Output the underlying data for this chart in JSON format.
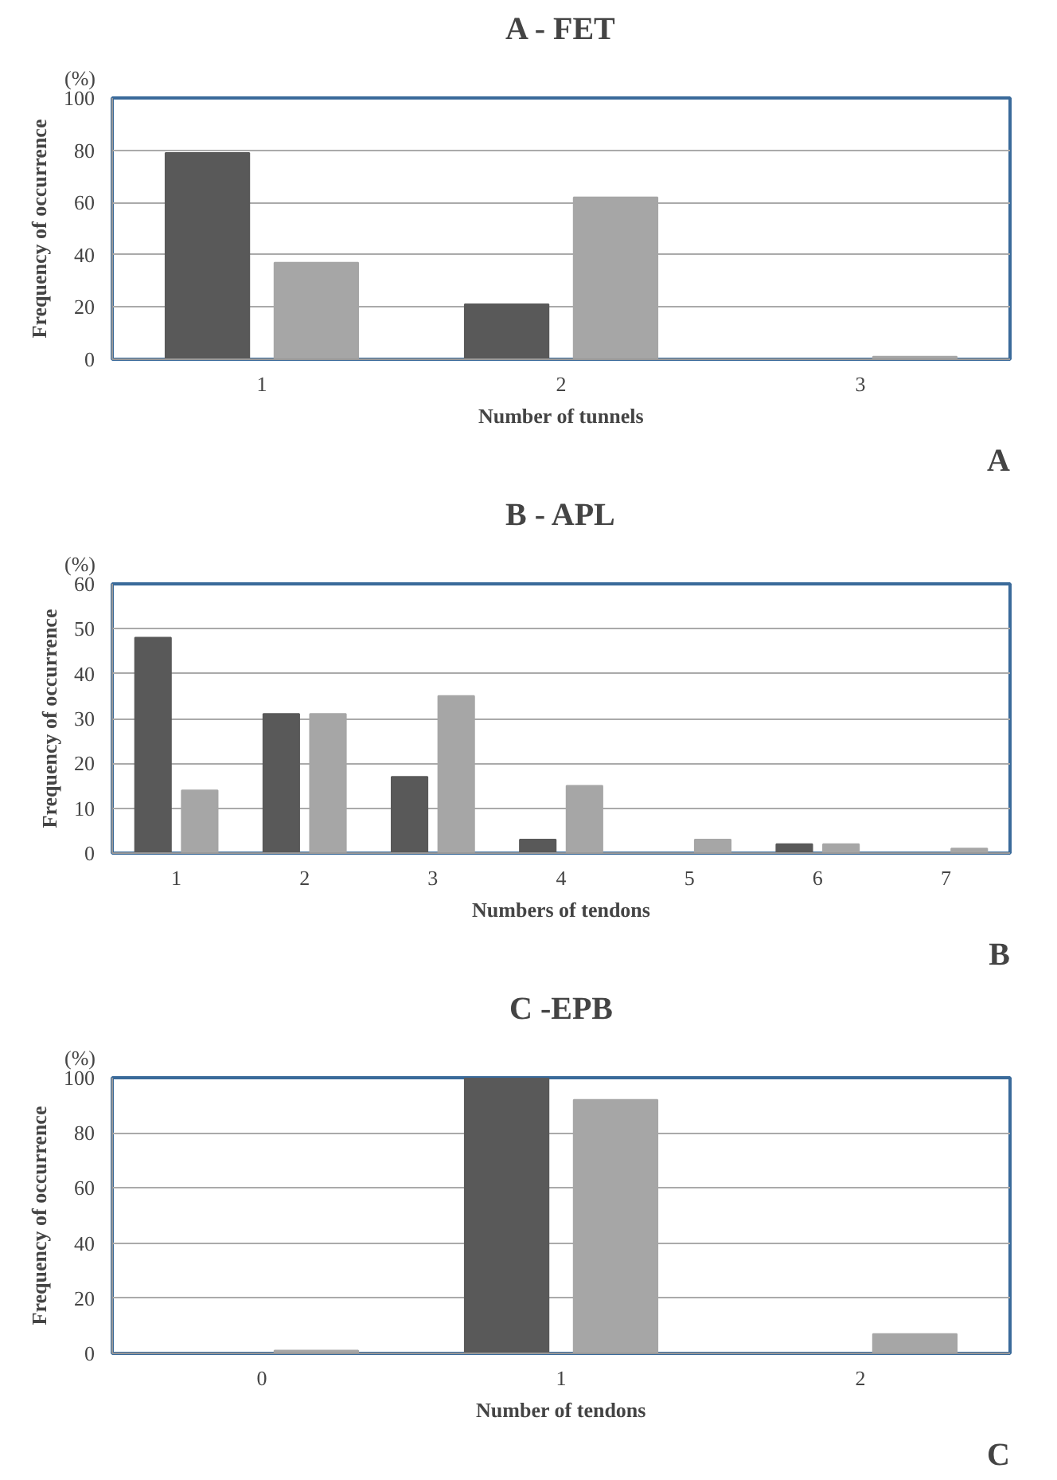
{
  "chart_data": [
    {
      "type": "bar",
      "title": "A - FET",
      "xlabel": "Number of tunnels",
      "ylabel": "Frequency of occurrence",
      "categories": [
        "1",
        "2",
        "3"
      ],
      "series": [
        {
          "color": "#595959",
          "values": [
            79,
            21,
            0
          ]
        },
        {
          "color": "#a6a6a6",
          "values": [
            37,
            62,
            1
          ]
        }
      ],
      "ylim": [
        0,
        100
      ],
      "yticks": [
        0,
        20,
        40,
        60,
        80,
        100
      ],
      "grid": "y",
      "annotations": [
        "(%)",
        "A"
      ]
    },
    {
      "type": "bar",
      "title": "B - APL",
      "xlabel": "Numbers of tendons",
      "ylabel": "Frequency of occurrence",
      "categories": [
        "1",
        "2",
        "3",
        "4",
        "5",
        "6",
        "7"
      ],
      "series": [
        {
          "color": "#595959",
          "values": [
            48,
            31,
            17,
            3,
            0,
            2,
            0
          ]
        },
        {
          "color": "#a6a6a6",
          "values": [
            14,
            31,
            35,
            15,
            3,
            2,
            1
          ]
        }
      ],
      "ylim": [
        0,
        60
      ],
      "yticks": [
        0,
        10,
        20,
        30,
        40,
        50,
        60
      ],
      "grid": "y",
      "annotations": [
        "(%)",
        "B"
      ]
    },
    {
      "type": "bar",
      "title": "C -EPB",
      "xlabel": "Number of tendons",
      "ylabel": "Frequency of occurrence",
      "categories": [
        "0",
        "1",
        "2"
      ],
      "series": [
        {
          "color": "#595959",
          "values": [
            0,
            100,
            0
          ]
        },
        {
          "color": "#a6a6a6",
          "values": [
            1,
            92,
            7
          ]
        }
      ],
      "ylim": [
        0,
        100
      ],
      "yticks": [
        0,
        20,
        40,
        60,
        80,
        100
      ],
      "grid": "y",
      "annotations": [
        "(%)",
        "C"
      ]
    }
  ]
}
